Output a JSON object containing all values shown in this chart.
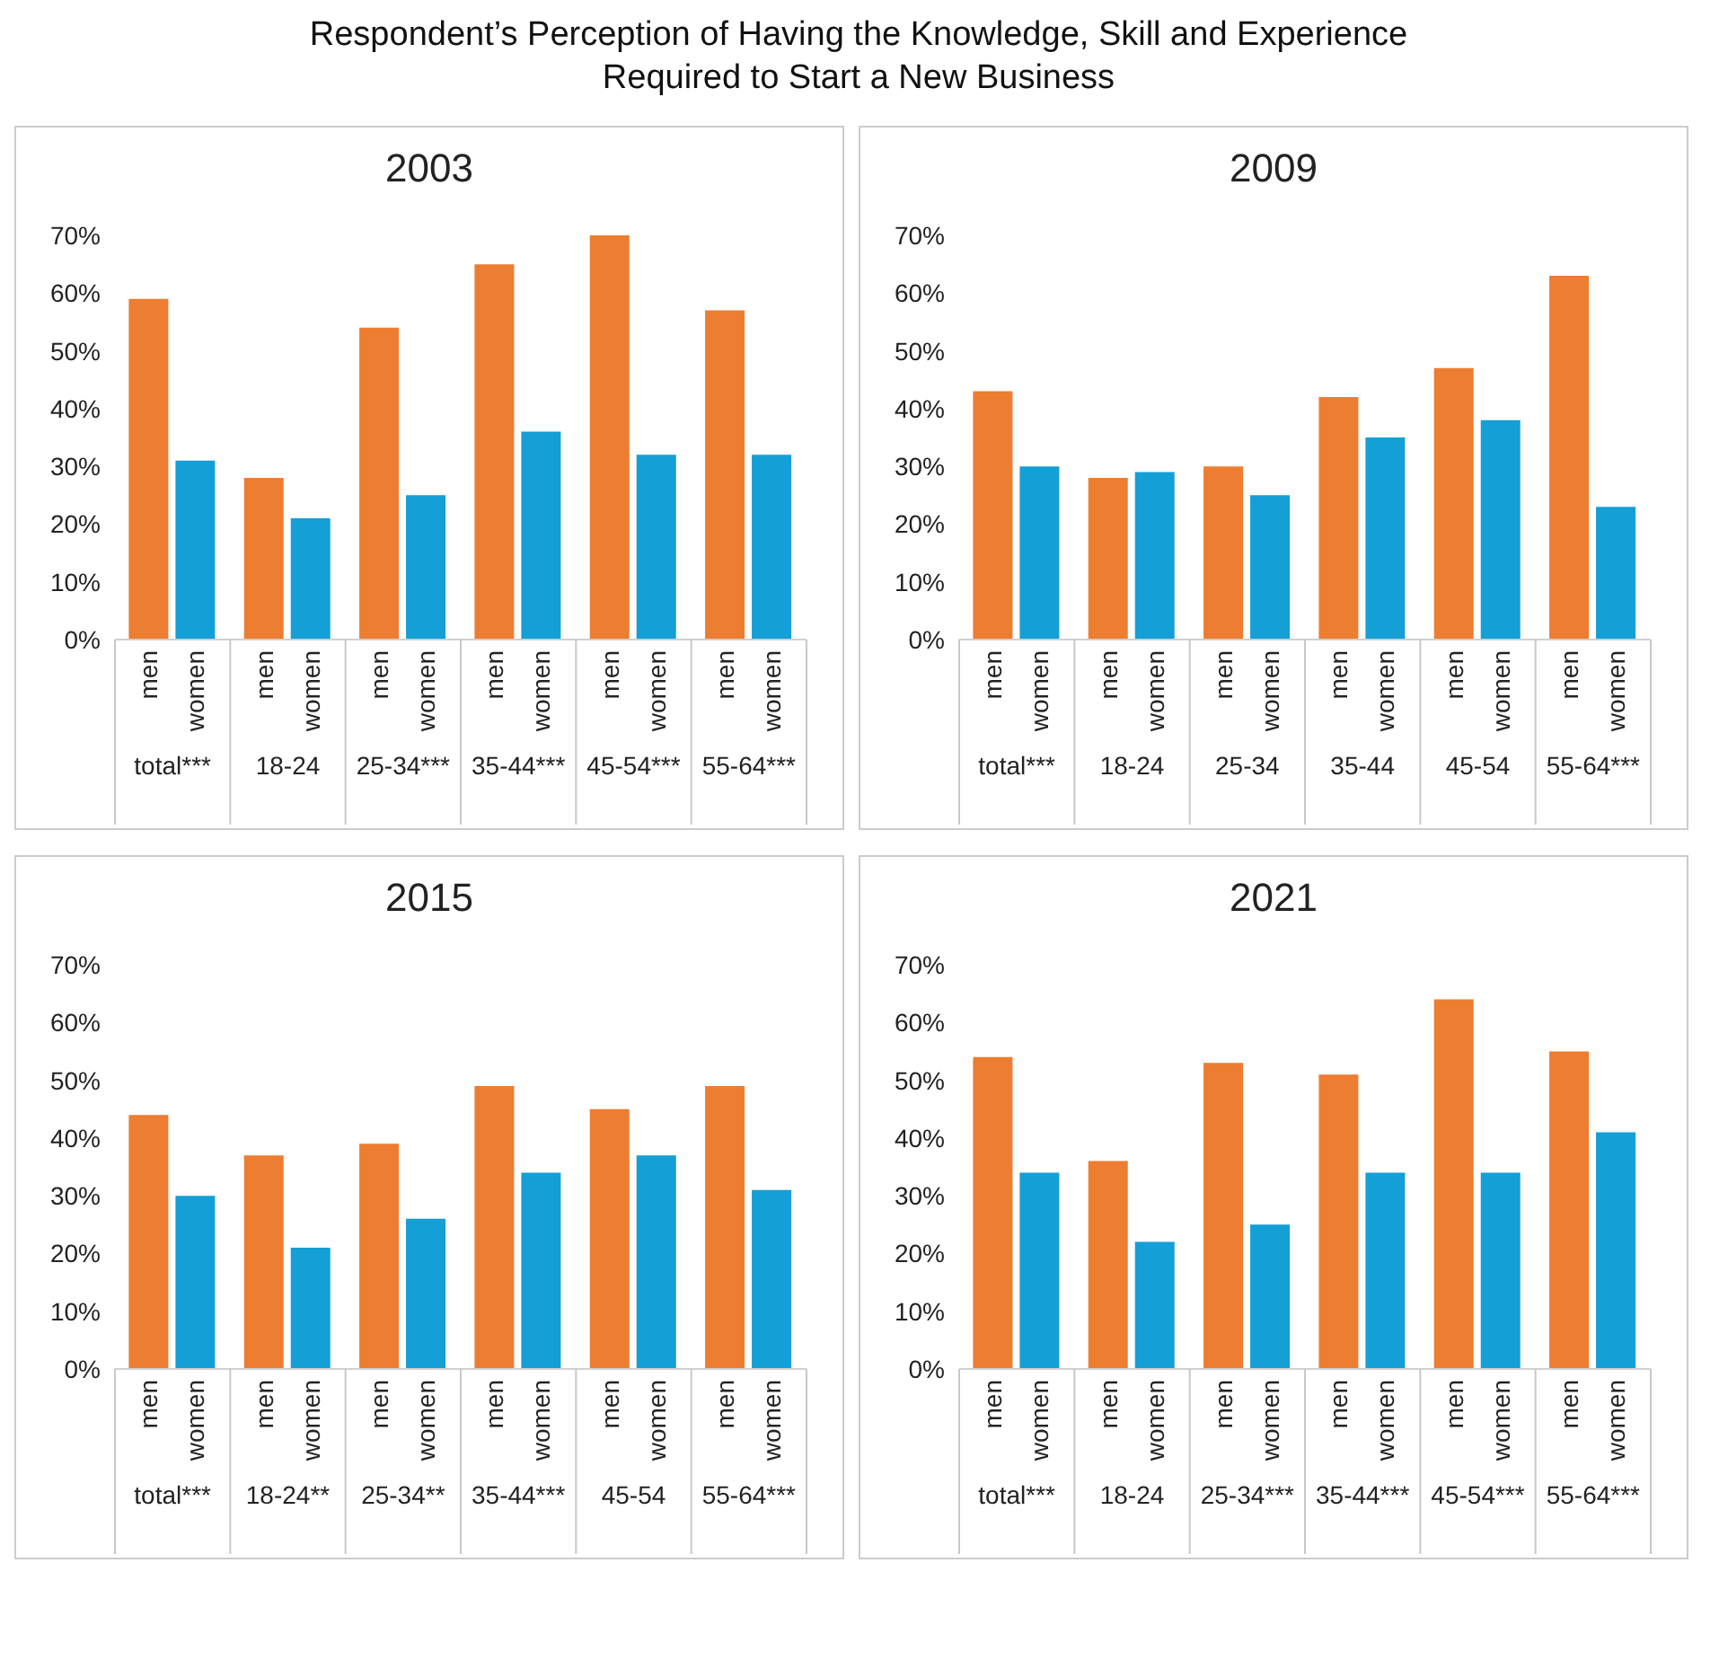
{
  "chart_data": [
    {
      "type": "bar",
      "title": "2003",
      "annotations": [
        "Respondent’s Perception of Having the Knowledge, Skill and Experience Required to Start a New Business"
      ],
      "categories": [
        "total***",
        "18-24",
        "25-34***",
        "35-44***",
        "45-54***",
        "55-64***"
      ],
      "series": [
        {
          "name": "men",
          "color": "#ed7d31",
          "values": [
            59,
            28,
            54,
            65,
            70,
            57
          ]
        },
        {
          "name": "women",
          "color": "#149fd6",
          "values": [
            31,
            21,
            25,
            36,
            32,
            32
          ]
        }
      ],
      "ylim": [
        0,
        70
      ],
      "yticks": [
        {
          "value": 0,
          "label": "0%"
        },
        {
          "value": 10,
          "label": "10%"
        },
        {
          "value": 20,
          "label": "20%"
        },
        {
          "value": 30,
          "label": "30%"
        },
        {
          "value": 40,
          "label": "40%"
        },
        {
          "value": 50,
          "label": "50%"
        },
        {
          "value": 60,
          "label": "60%"
        },
        {
          "value": 70,
          "label": "70%"
        }
      ],
      "grid": false,
      "legend": false
    },
    {
      "type": "bar",
      "title": "2009",
      "categories": [
        "total***",
        "18-24",
        "25-34",
        "35-44",
        "45-54",
        "55-64***"
      ],
      "series": [
        {
          "name": "men",
          "color": "#ed7d31",
          "values": [
            43,
            28,
            30,
            42,
            47,
            63
          ]
        },
        {
          "name": "women",
          "color": "#149fd6",
          "values": [
            30,
            29,
            25,
            35,
            38,
            23
          ]
        }
      ],
      "ylim": [
        0,
        70
      ],
      "yticks": [
        {
          "value": 0,
          "label": "0%"
        },
        {
          "value": 10,
          "label": "10%"
        },
        {
          "value": 20,
          "label": "20%"
        },
        {
          "value": 30,
          "label": "30%"
        },
        {
          "value": 40,
          "label": "40%"
        },
        {
          "value": 50,
          "label": "50%"
        },
        {
          "value": 60,
          "label": "60%"
        },
        {
          "value": 70,
          "label": "70%"
        }
      ],
      "grid": false,
      "legend": false
    },
    {
      "type": "bar",
      "title": "2015",
      "categories": [
        "total***",
        "18-24**",
        "25-34**",
        "35-44***",
        "45-54",
        "55-64***"
      ],
      "series": [
        {
          "name": "men",
          "color": "#ed7d31",
          "values": [
            44,
            37,
            39,
            49,
            45,
            49
          ]
        },
        {
          "name": "women",
          "color": "#149fd6",
          "values": [
            30,
            21,
            26,
            34,
            37,
            31
          ]
        }
      ],
      "ylim": [
        0,
        70
      ],
      "yticks": [
        {
          "value": 0,
          "label": "0%"
        },
        {
          "value": 10,
          "label": "10%"
        },
        {
          "value": 20,
          "label": "20%"
        },
        {
          "value": 30,
          "label": "30%"
        },
        {
          "value": 40,
          "label": "40%"
        },
        {
          "value": 50,
          "label": "50%"
        },
        {
          "value": 60,
          "label": "60%"
        },
        {
          "value": 70,
          "label": "70%"
        }
      ],
      "grid": false,
      "legend": false
    },
    {
      "type": "bar",
      "title": "2021",
      "categories": [
        "total***",
        "18-24",
        "25-34***",
        "35-44***",
        "45-54***",
        "55-64***"
      ],
      "series": [
        {
          "name": "men",
          "color": "#ed7d31",
          "values": [
            54,
            36,
            53,
            51,
            64,
            55
          ]
        },
        {
          "name": "women",
          "color": "#149fd6",
          "values": [
            34,
            22,
            25,
            34,
            34,
            41
          ]
        }
      ],
      "ylim": [
        0,
        70
      ],
      "yticks": [
        {
          "value": 0,
          "label": "0%"
        },
        {
          "value": 10,
          "label": "10%"
        },
        {
          "value": 20,
          "label": "20%"
        },
        {
          "value": 30,
          "label": "30%"
        },
        {
          "value": 40,
          "label": "40%"
        },
        {
          "value": 50,
          "label": "50%"
        },
        {
          "value": 60,
          "label": "60%"
        },
        {
          "value": 70,
          "label": "70%"
        }
      ],
      "grid": false,
      "legend": false
    }
  ]
}
